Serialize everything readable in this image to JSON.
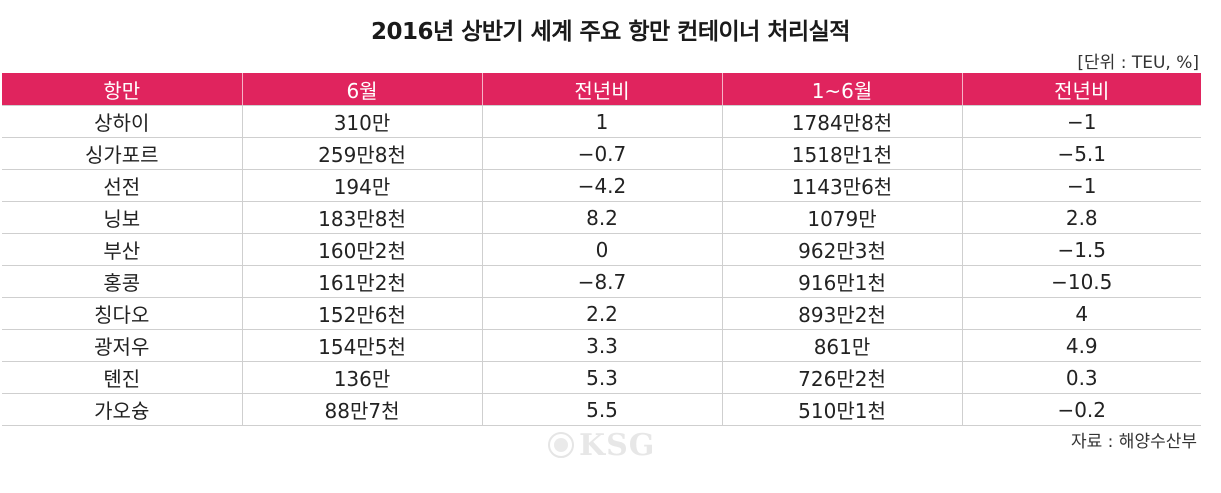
{
  "title": "2016년 상반기 세계 주요 항만 컨테이너 처리실적",
  "unit_note": "[단위 : TEU, %]",
  "table": {
    "headers": [
      "항만",
      "6월",
      "전년비",
      "1~6월",
      "전년비"
    ],
    "rows": [
      [
        "상하이",
        "310만",
        "1",
        "1784만8천",
        "−1"
      ],
      [
        "싱가포르",
        "259만8천",
        "−0.7",
        "1518만1천",
        "−5.1"
      ],
      [
        "선전",
        "194만",
        "−4.2",
        "1143만6천",
        "−1"
      ],
      [
        "닝보",
        "183만8천",
        "8.2",
        "1079만",
        "2.8"
      ],
      [
        "부산",
        "160만2천",
        "0",
        "962만3천",
        "−1.5"
      ],
      [
        "홍콩",
        "161만2천",
        "−8.7",
        "916만1천",
        "−10.5"
      ],
      [
        "칭다오",
        "152만6천",
        "2.2",
        "893만2천",
        "4"
      ],
      [
        "광저우",
        "154만5천",
        "3.3",
        "861만",
        "4.9"
      ],
      [
        "톈진",
        "136만",
        "5.3",
        "726만2천",
        "0.3"
      ],
      [
        "가오슝",
        "88만7천",
        "5.5",
        "510만1천",
        "−0.2"
      ]
    ]
  },
  "source": "자료 : 해양수산부",
  "watermark": "KSG",
  "colors": {
    "header_bg": "#e0245e",
    "header_text": "#ffffff"
  }
}
